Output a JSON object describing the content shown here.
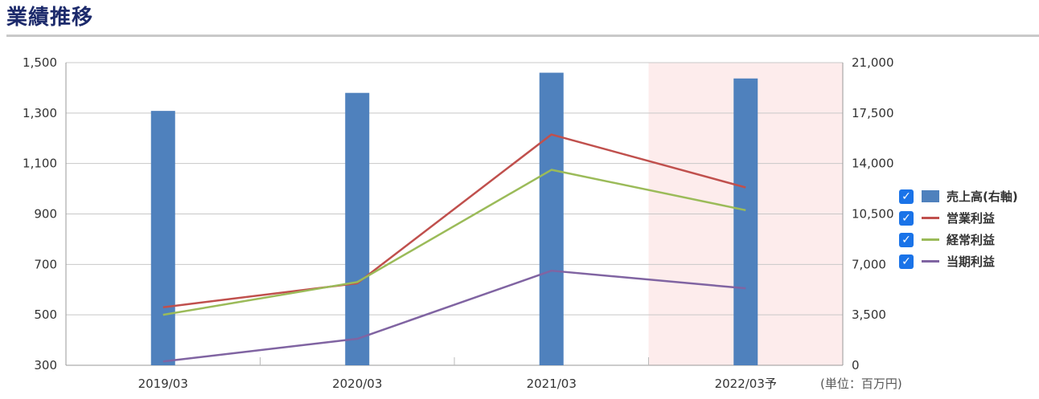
{
  "header": {
    "title": "業績推移"
  },
  "unit_label": "(単位：百万円)",
  "chart_data": {
    "type": "bar",
    "categories": [
      "2019/03",
      "2020/03",
      "2021/03",
      "2022/03予"
    ],
    "forecast_category_index": 3,
    "forecast_shading_color": "#fdecec",
    "left_axis": {
      "ylim": [
        300,
        1500
      ],
      "ticks": [
        "1,500",
        "1,300",
        "1,100",
        "900",
        "700",
        "500",
        "300"
      ]
    },
    "right_axis": {
      "ylim": [
        0,
        21000
      ],
      "ticks": [
        "21,000",
        "17,500",
        "14,000",
        "10,500",
        "7,000",
        "3,500",
        "0"
      ]
    },
    "grid": true,
    "legend_position": "right",
    "series": [
      {
        "name": "売上高(右軸)",
        "type": "bar",
        "axis": "right",
        "color": "#4f81bd",
        "values": [
          17650,
          18900,
          20300,
          19900
        ]
      },
      {
        "name": "営業利益",
        "type": "line",
        "axis": "left",
        "color": "#c0504d",
        "values": [
          530,
          625,
          1215,
          1005
        ]
      },
      {
        "name": "経常利益",
        "type": "line",
        "axis": "left",
        "color": "#9bbb59",
        "values": [
          500,
          630,
          1075,
          915
        ]
      },
      {
        "name": "当期利益",
        "type": "line",
        "axis": "left",
        "color": "#8064a2",
        "values": [
          315,
          405,
          675,
          605
        ]
      }
    ]
  }
}
